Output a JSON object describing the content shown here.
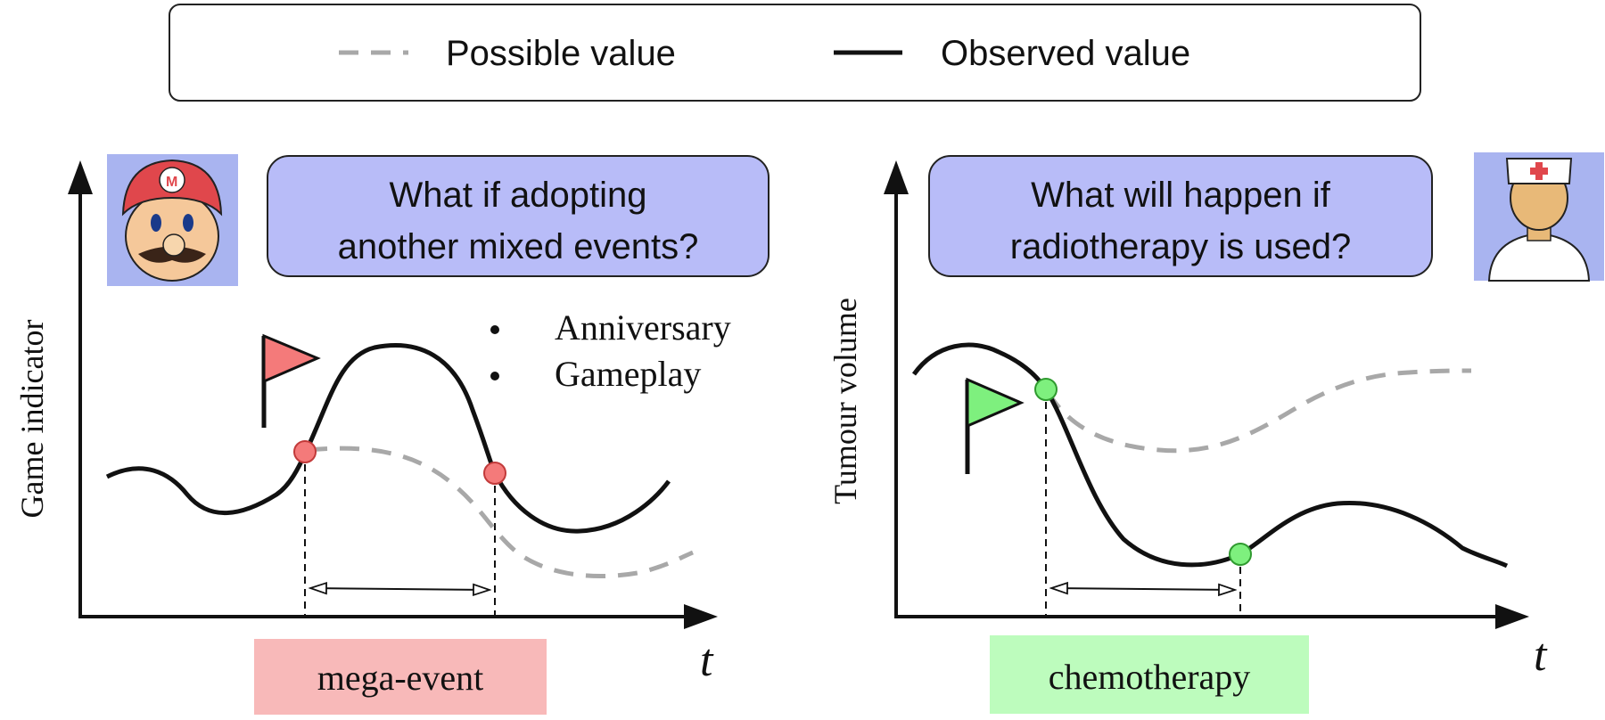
{
  "legend": {
    "possible_label": "Possible value",
    "observed_label": "Observed value"
  },
  "left_panel": {
    "question_line1": "What if adopting",
    "question_line2": "another mixed events?",
    "y_axis_label": "Game indicator",
    "x_axis_label": "t",
    "bullets": [
      "Anniversary",
      "Gameplay"
    ],
    "event_label": "mega-event",
    "icon": "mario-icon",
    "flag_icon": "red-flag-icon"
  },
  "right_panel": {
    "question_line1": "What will happen if",
    "question_line2": "radiotherapy is used?",
    "y_axis_label": "Tumour volume",
    "x_axis_label": "t",
    "event_label": "chemotherapy",
    "icon": "nurse-icon",
    "flag_icon": "green-flag-icon"
  },
  "colors": {
    "question_box": "#b8bcf8",
    "icon_bg": "#a9b4f0",
    "mega_event_bg": "#f8b9b9",
    "chemo_bg": "#bdfcbd",
    "red_marker": "#f47a7a",
    "green_marker": "#7ef07e",
    "possible_line": "#a8a8a8",
    "observed_line": "#111111"
  }
}
